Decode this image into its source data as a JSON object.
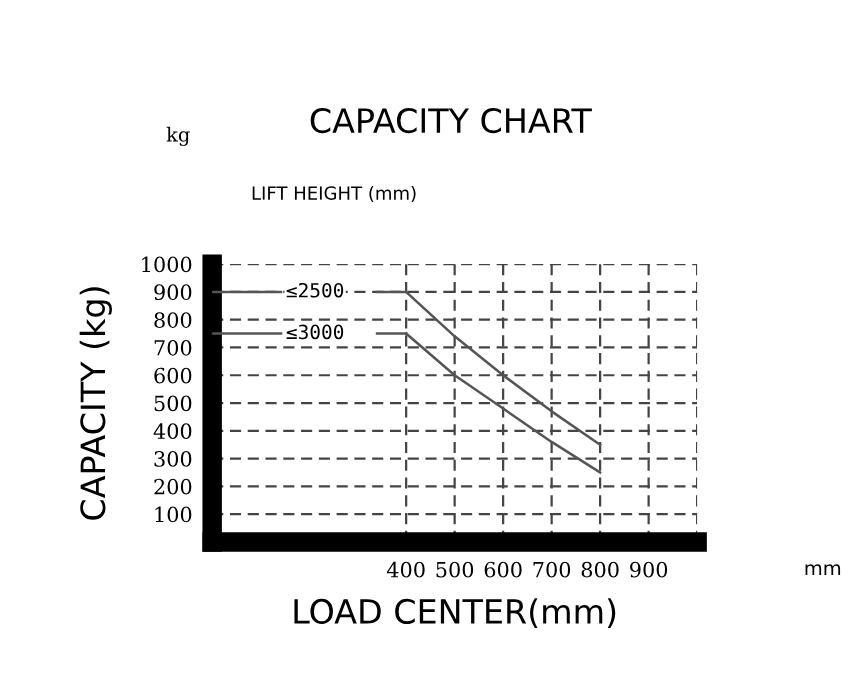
{
  "chart_data": {
    "type": "line",
    "title": "CAPACITY CHART",
    "xlabel": "LOAD CENTER(mm)",
    "ylabel": "CAPACITY (kg)",
    "legend_title": "LIFT HEIGHT (mm)",
    "annotations": [
      "kg",
      "mm"
    ],
    "x": [
      400,
      500,
      600,
      700,
      800
    ],
    "series": [
      {
        "name": "≤2500",
        "color": "#555555",
        "values": [
          900,
          740,
          600,
          470,
          350
        ]
      },
      {
        "name": "≤3000",
        "color": "#555555",
        "values": [
          750,
          600,
          480,
          360,
          250
        ]
      }
    ],
    "xlim": [
      0,
      1000
    ],
    "ylim": [
      0,
      1000
    ],
    "xticks": [
      400,
      500,
      600,
      700,
      800,
      900,
      {
        "value": 1000,
        "label": null
      }
    ],
    "yticks": [
      100,
      200,
      300,
      400,
      500,
      600,
      700,
      800,
      900,
      1000
    ],
    "grid": true,
    "legend": "top left",
    "marker": "none",
    "line_style": "solid"
  }
}
